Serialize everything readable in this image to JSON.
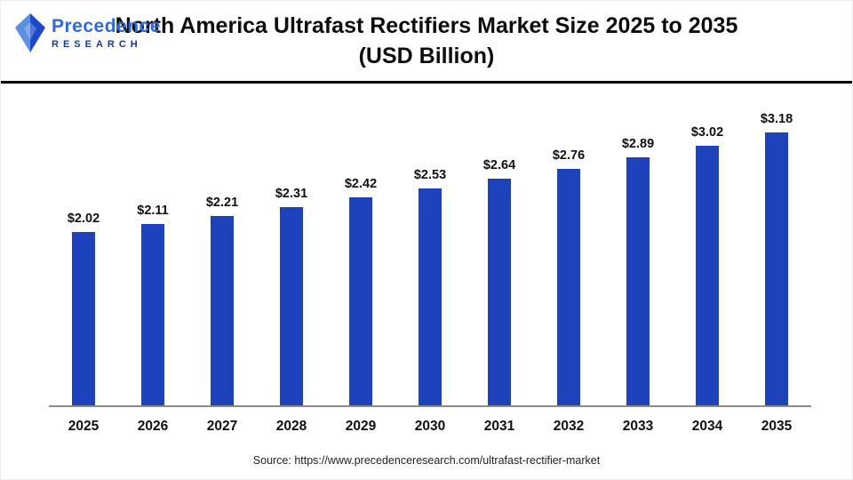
{
  "header": {
    "logo": {
      "name_line": "Precedence",
      "sub_line": "RESEARCH"
    },
    "title_line1": "North America Ultrafast Rectifiers Market Size 2025 to 2035",
    "title_line2": "(USD Billion)"
  },
  "chart_data": {
    "type": "bar",
    "title": "North America Ultrafast Rectifiers Market Size 2025 to 2035 (USD Billion)",
    "categories": [
      "2025",
      "2026",
      "2027",
      "2028",
      "2029",
      "2030",
      "2031",
      "2032",
      "2033",
      "2034",
      "2035"
    ],
    "values": [
      2.02,
      2.11,
      2.21,
      2.31,
      2.42,
      2.53,
      2.64,
      2.76,
      2.89,
      3.02,
      3.18
    ],
    "value_prefix": "$",
    "value_decimals": 2,
    "xlabel": "",
    "ylabel": "",
    "ylim": [
      0,
      3.5
    ],
    "grid": false,
    "legend": false,
    "value_labels": true,
    "bar_color": "#1e42bc",
    "axis_line_color": "#8a8a8a"
  },
  "footer": {
    "source": "Source: https://www.precedenceresearch.com/ultrafast-rectifier-market"
  }
}
